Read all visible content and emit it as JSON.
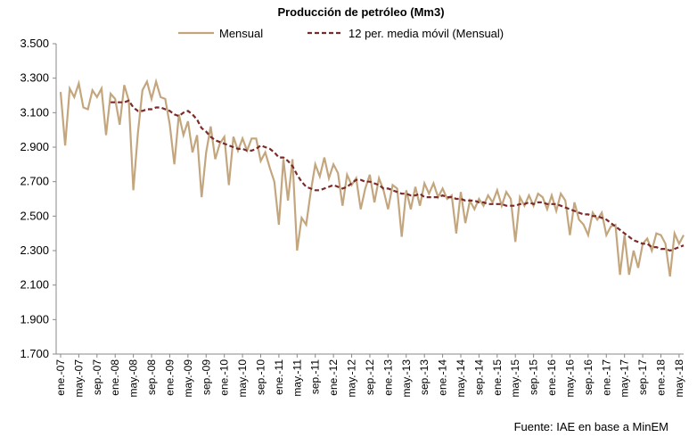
{
  "chart_data": {
    "type": "line",
    "title": "Producción de petróleo (Mm3)",
    "source": "Fuente: IAE  en base a MinEM",
    "legend": "top",
    "ylim": [
      1700,
      3500
    ],
    "yticks": [
      {
        "value": 1700,
        "label": "1.700"
      },
      {
        "value": 1900,
        "label": "1.900"
      },
      {
        "value": 2100,
        "label": "2.100"
      },
      {
        "value": 2300,
        "label": "2.300"
      },
      {
        "value": 2500,
        "label": "2.500"
      },
      {
        "value": 2700,
        "label": "2.700"
      },
      {
        "value": 2900,
        "label": "2.900"
      },
      {
        "value": 3100,
        "label": "3.100"
      },
      {
        "value": 3300,
        "label": "3.300"
      },
      {
        "value": 3500,
        "label": "3.500"
      }
    ],
    "categories": [
      "ene.-07",
      null,
      null,
      null,
      "may.-07",
      null,
      null,
      null,
      "sep.-07",
      null,
      null,
      null,
      "ene.-08",
      null,
      null,
      null,
      "may.-08",
      null,
      null,
      null,
      "sep.-08",
      null,
      null,
      null,
      "ene.-09",
      null,
      null,
      null,
      "may.-09",
      null,
      null,
      null,
      "sep.-09",
      null,
      null,
      null,
      "ene.-10",
      null,
      null,
      null,
      "may.-10",
      null,
      null,
      null,
      "sep.-10",
      null,
      null,
      null,
      "ene.-11",
      null,
      null,
      null,
      "may.-11",
      null,
      null,
      null,
      "sep.-11",
      null,
      null,
      null,
      "ene.-12",
      null,
      null,
      null,
      "may.-12",
      null,
      null,
      null,
      "sep.-12",
      null,
      null,
      null,
      "ene.-13",
      null,
      null,
      null,
      "may.-13",
      null,
      null,
      null,
      "sep.-13",
      null,
      null,
      null,
      "ene.-14",
      null,
      null,
      null,
      "may.-14",
      null,
      null,
      null,
      "sep.-14",
      null,
      null,
      null,
      "ene.-15",
      null,
      null,
      null,
      "may.-15",
      null,
      null,
      null,
      "sep.-15",
      null,
      null,
      null,
      "ene.-16",
      null,
      null,
      null,
      "may.-16",
      null,
      null,
      null,
      "sep.-16",
      null,
      null,
      null,
      "ene.-17",
      null,
      null,
      null,
      "may.-17",
      null,
      null,
      null,
      "sep.-17",
      null,
      null,
      null,
      "ene.-18",
      null,
      null,
      null,
      "may.-18",
      null
    ],
    "series": [
      {
        "name": "Mensual",
        "color": "#c4a67e",
        "dash": false,
        "values": [
          3220,
          2910,
          3240,
          3190,
          3270,
          3130,
          3120,
          3230,
          3190,
          3240,
          2970,
          3210,
          3180,
          3030,
          3260,
          3170,
          2650,
          2980,
          3230,
          3280,
          3180,
          3280,
          3190,
          3180,
          3030,
          2800,
          3090,
          2970,
          3050,
          2870,
          2970,
          2610,
          2870,
          3020,
          2830,
          2920,
          2960,
          2680,
          2960,
          2880,
          2950,
          2880,
          2950,
          2950,
          2820,
          2870,
          2780,
          2700,
          2450,
          2830,
          2590,
          2830,
          2300,
          2490,
          2450,
          2640,
          2800,
          2730,
          2840,
          2720,
          2800,
          2750,
          2560,
          2740,
          2680,
          2720,
          2540,
          2660,
          2740,
          2580,
          2720,
          2650,
          2540,
          2680,
          2660,
          2380,
          2650,
          2540,
          2670,
          2560,
          2690,
          2630,
          2690,
          2610,
          2660,
          2600,
          2620,
          2400,
          2640,
          2460,
          2590,
          2540,
          2600,
          2560,
          2620,
          2580,
          2650,
          2560,
          2640,
          2600,
          2350,
          2610,
          2560,
          2620,
          2560,
          2630,
          2610,
          2540,
          2620,
          2530,
          2630,
          2590,
          2390,
          2580,
          2480,
          2450,
          2390,
          2520,
          2480,
          2520,
          2390,
          2440,
          2450,
          2160,
          2390,
          2160,
          2300,
          2200,
          2340,
          2370,
          2300,
          2400,
          2390,
          2340,
          2150,
          2400,
          2340,
          2390
        ]
      },
      {
        "name": "12 per. media móvil (Mensual)",
        "color": "#7b2a28",
        "dash": true,
        "values": [
          null,
          null,
          null,
          null,
          null,
          null,
          null,
          null,
          null,
          null,
          null,
          3160,
          3160,
          3160,
          3160,
          3170,
          3130,
          3110,
          3110,
          3120,
          3120,
          3130,
          3130,
          3120,
          3110,
          3090,
          3080,
          3100,
          3110,
          3090,
          3060,
          3010,
          2990,
          2960,
          2940,
          2930,
          2920,
          2910,
          2900,
          2890,
          2890,
          2880,
          2880,
          2890,
          2910,
          2900,
          2890,
          2870,
          2840,
          2840,
          2820,
          2790,
          2740,
          2700,
          2670,
          2660,
          2650,
          2650,
          2660,
          2670,
          2680,
          2670,
          2660,
          2670,
          2690,
          2710,
          2710,
          2700,
          2700,
          2690,
          2680,
          2660,
          2660,
          2650,
          2640,
          2630,
          2630,
          2620,
          2620,
          2630,
          2610,
          2610,
          2610,
          2610,
          2620,
          2610,
          2610,
          2600,
          2600,
          2590,
          2590,
          2590,
          2580,
          2580,
          2570,
          2570,
          2570,
          2570,
          2560,
          2560,
          2560,
          2570,
          2570,
          2580,
          2570,
          2580,
          2580,
          2570,
          2570,
          2570,
          2560,
          2550,
          2540,
          2530,
          2520,
          2510,
          2510,
          2500,
          2500,
          2490,
          2480,
          2460,
          2440,
          2420,
          2400,
          2380,
          2360,
          2350,
          2340,
          2340,
          2320,
          2320,
          2310,
          2310,
          2300,
          2310,
          2320,
          2330
        ]
      }
    ]
  }
}
